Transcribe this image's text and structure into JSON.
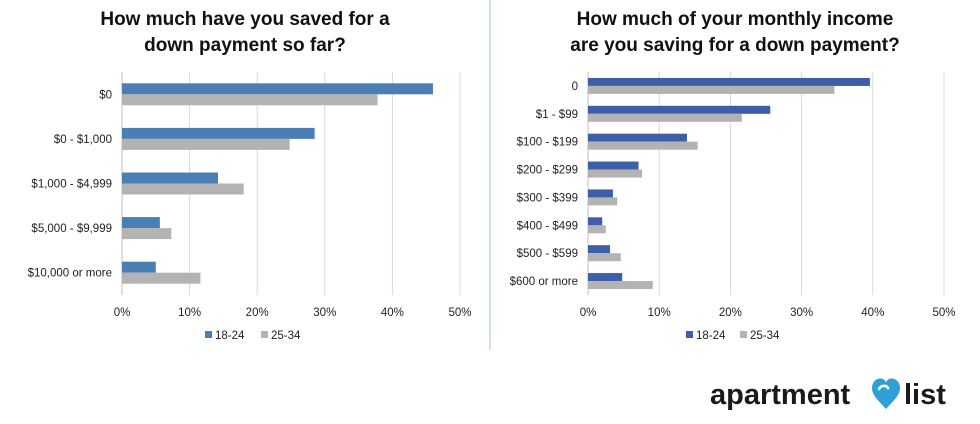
{
  "chart_data": [
    {
      "type": "bar",
      "orientation": "horizontal",
      "title_lines": [
        "How much have you saved for a",
        "down payment so far?"
      ],
      "categories": [
        "$0",
        "$0 - $1,000",
        "$1,000 - $4,999",
        "$5,000 - $9,999",
        "$10,000 or more"
      ],
      "series": [
        {
          "name": "18-24",
          "color": "#4a7fb5",
          "values": [
            46,
            28.5,
            14.2,
            5.6,
            5.0
          ]
        },
        {
          "name": "25-34",
          "color": "#b3b3b3",
          "values": [
            37.8,
            24.8,
            18,
            7.3,
            11.6
          ]
        }
      ],
      "x_ticks": [
        "0%",
        "10%",
        "20%",
        "30%",
        "40%",
        "50%"
      ],
      "xlim": [
        0,
        50
      ],
      "grid": true,
      "legend": "bottom"
    },
    {
      "type": "bar",
      "orientation": "horizontal",
      "title_lines": [
        "How much of your monthly income",
        "are you saving for a down payment?"
      ],
      "categories": [
        "0",
        "$1 - $99",
        "$100 - $199",
        "$200 - $299",
        "$300 - $399",
        "$400 - $499",
        "$500 - $599",
        "$600 or more"
      ],
      "series": [
        {
          "name": "18-24",
          "color": "#3d5ea8",
          "values": [
            39.6,
            25.6,
            13.9,
            7.1,
            3.5,
            2.0,
            3.1,
            4.8
          ]
        },
        {
          "name": "25-34",
          "color": "#b3b3b3",
          "values": [
            34.6,
            21.6,
            15.4,
            7.6,
            4.1,
            2.5,
            4.6,
            9.1
          ]
        }
      ],
      "x_ticks": [
        "0%",
        "10%",
        "20%",
        "30%",
        "40%",
        "50%"
      ],
      "xlim": [
        0,
        50
      ],
      "grid": true,
      "legend": "bottom"
    }
  ],
  "logo": {
    "text_left": "apartment",
    "text_right": "list",
    "pin_color": "#2f9fd8",
    "icon": "heart-pin-icon"
  },
  "divider_color": "#bcd6ea"
}
